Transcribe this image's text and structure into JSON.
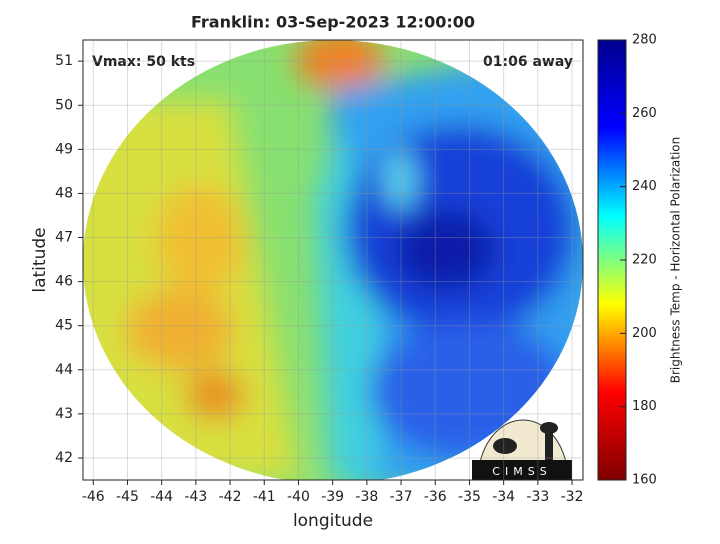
{
  "chart_data": {
    "type": "image",
    "title": "Franklin: 03-Sep-2023 12:00:00",
    "annotations": [
      "Vmax: 50 kts",
      "01:06 away"
    ],
    "xlabel": "longitude",
    "ylabel": "latitude",
    "xlim": [
      -46.3,
      -31.68
    ],
    "ylim": [
      41.5,
      51.48
    ],
    "xticks": [
      -46,
      -45,
      -44,
      -43,
      -42,
      -41,
      -40,
      -39,
      -38,
      -37,
      -36,
      -35,
      -34,
      -33,
      -32
    ],
    "yticks": [
      42,
      43,
      44,
      45,
      46,
      47,
      48,
      49,
      50,
      51
    ],
    "grid": true,
    "colorbar": {
      "label": "Brightness Temp - Horizontal Polarization",
      "lim": [
        160,
        280
      ],
      "ticks": [
        160,
        180,
        200,
        220,
        240,
        260,
        280
      ],
      "colors": [
        "#800000",
        "#ff0000",
        "#ffff00",
        "#00ffff",
        "#0000ff",
        "#00008f"
      ]
    },
    "logo_text": "CIMSS"
  }
}
